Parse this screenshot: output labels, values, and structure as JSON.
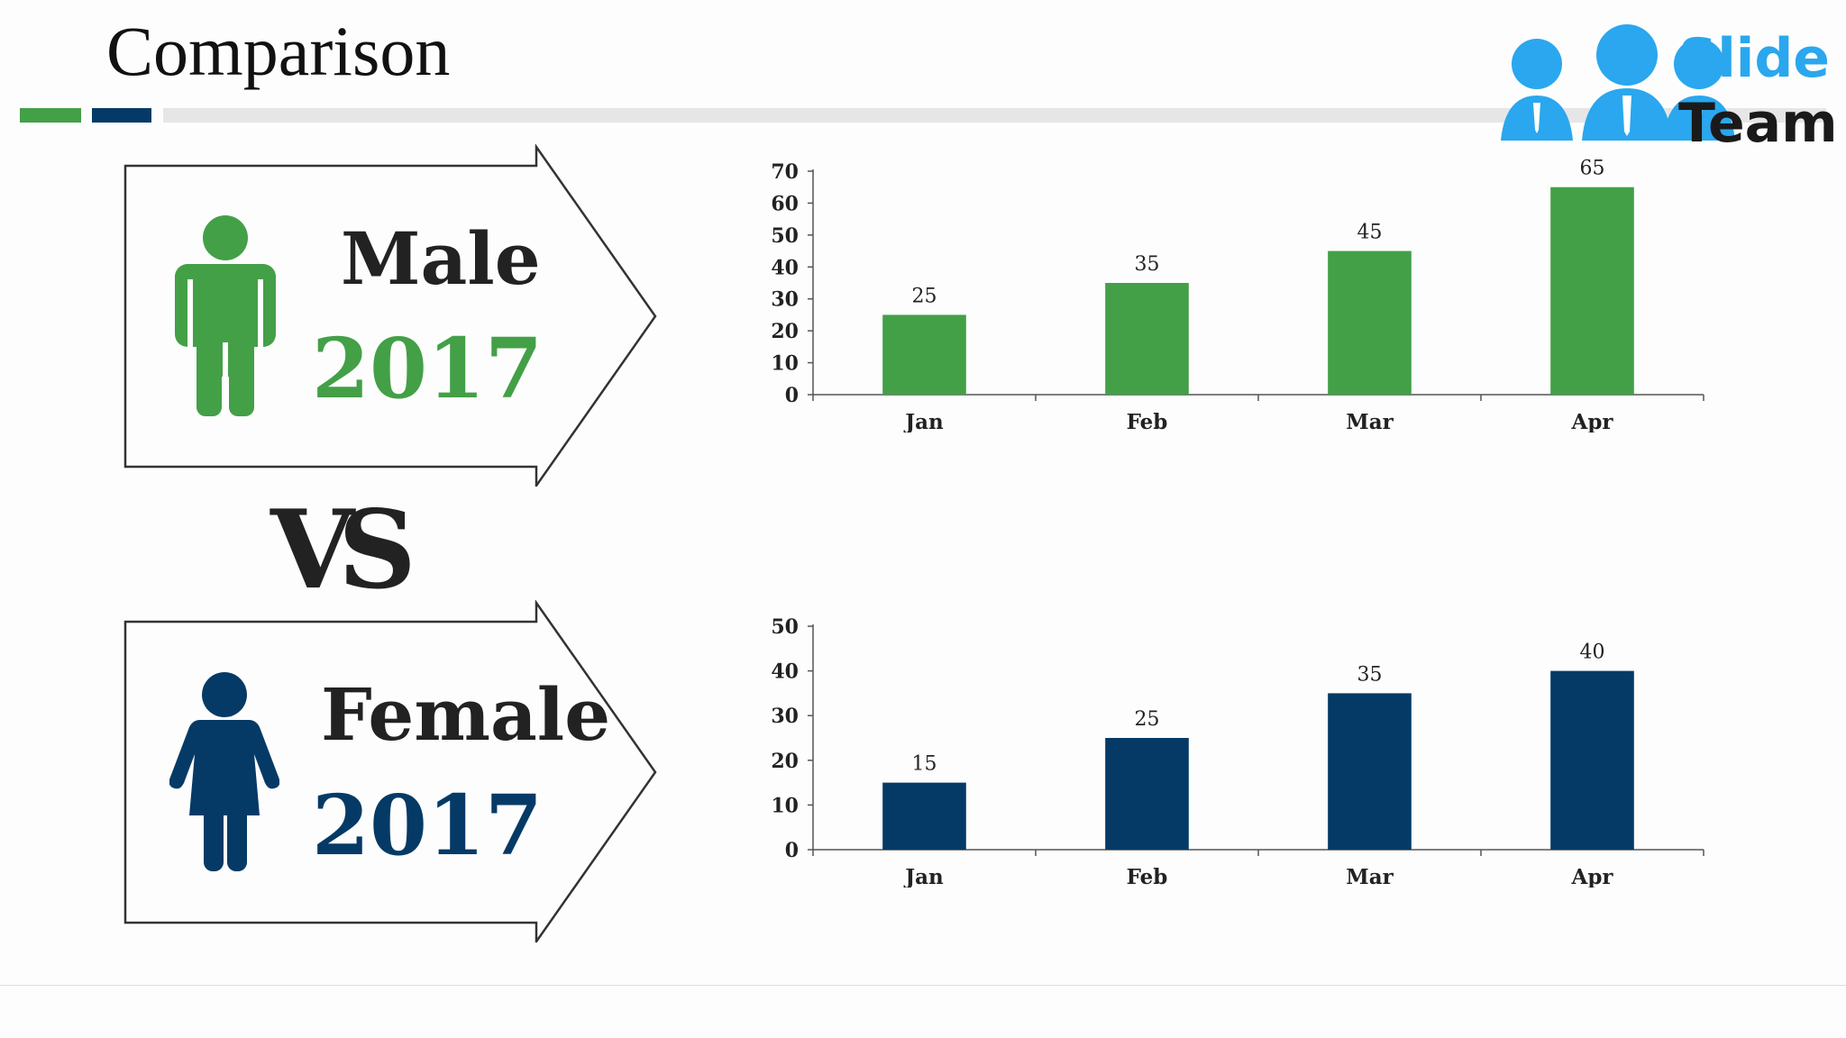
{
  "title": "Comparison",
  "logo": {
    "line1": "Slide",
    "line2": "Team"
  },
  "male": {
    "label": "Male",
    "year": "2017"
  },
  "female": {
    "label": "Female",
    "year": "2017"
  },
  "vs_text": "VS",
  "colors": {
    "green": "#43a047",
    "navy": "#053a66",
    "logo_blue": "#2aa7ee"
  },
  "icons": {
    "male": "male-person-icon",
    "female": "female-person-icon",
    "logo": "team-people-icon"
  },
  "chart_data": [
    {
      "type": "bar",
      "categories": [
        "Jan",
        "Feb",
        "Mar",
        "Apr"
      ],
      "values": [
        25,
        35,
        45,
        65
      ],
      "ylim": [
        0,
        70
      ],
      "yticks": [
        0,
        10,
        20,
        30,
        40,
        50,
        60,
        70
      ],
      "color": "#43a047",
      "data_labels": true,
      "grid": false
    },
    {
      "type": "bar",
      "categories": [
        "Jan",
        "Feb",
        "Mar",
        "Apr"
      ],
      "values": [
        15,
        25,
        35,
        40
      ],
      "ylim": [
        0,
        50
      ],
      "yticks": [
        0,
        10,
        20,
        30,
        40,
        50
      ],
      "color": "#053a66",
      "data_labels": true,
      "grid": false
    }
  ]
}
